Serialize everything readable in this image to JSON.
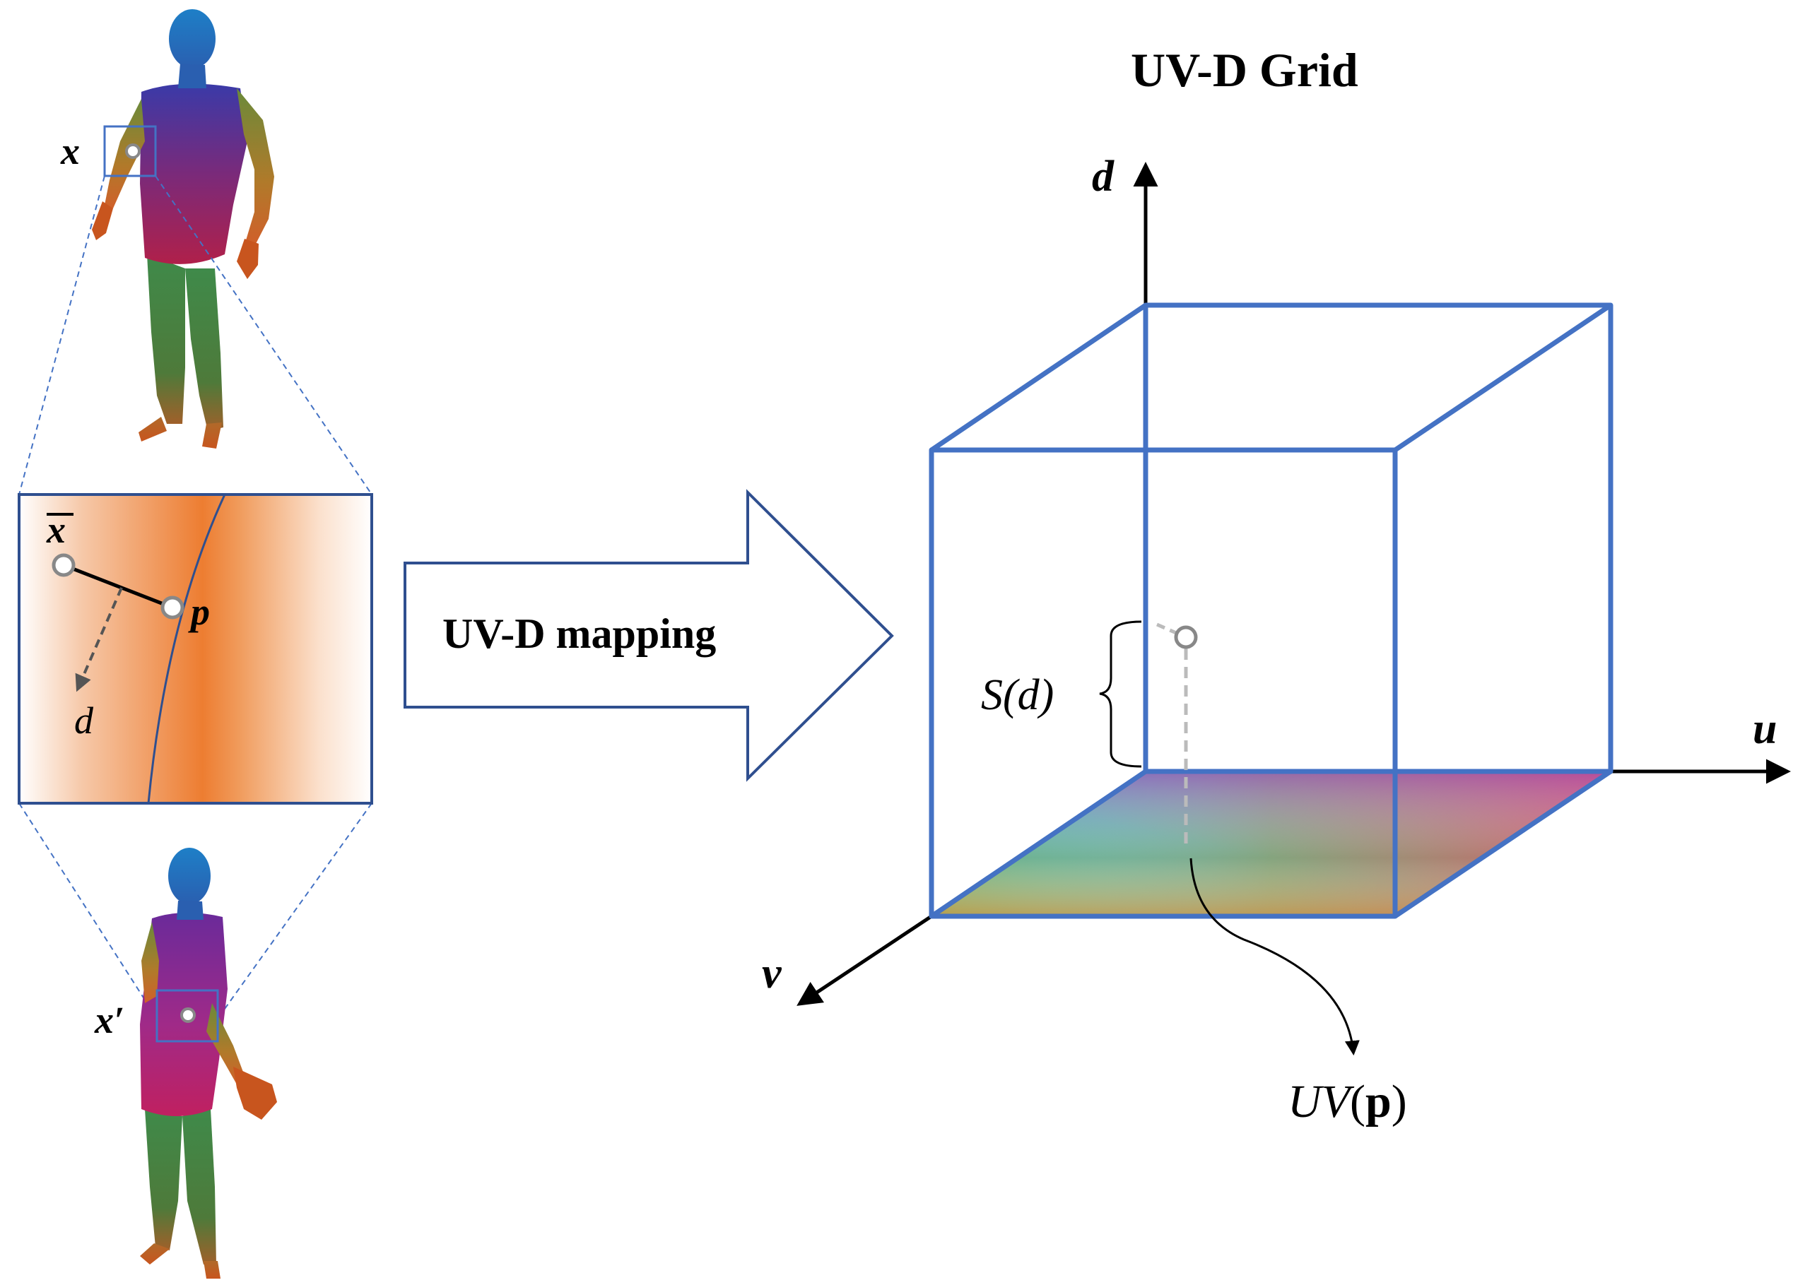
{
  "title": "UV-D Grid",
  "arrow_label": "UV-D mapping",
  "points": {
    "x": "x",
    "x_bar": "x",
    "x_prime": "x′",
    "p": "p"
  },
  "direction_label": "d",
  "axes": {
    "d": "d",
    "u": "u",
    "v": "v"
  },
  "annotations": {
    "s_of_d": "S(d)",
    "uv_p_prefix": "UV",
    "uv_p_arg": "p"
  },
  "colors": {
    "box_edge": "#4472C4",
    "zoom_border": "#2F4F8F",
    "dashed_guide": "#4472C4",
    "orange": "#ED7D31",
    "text": "#000000"
  }
}
